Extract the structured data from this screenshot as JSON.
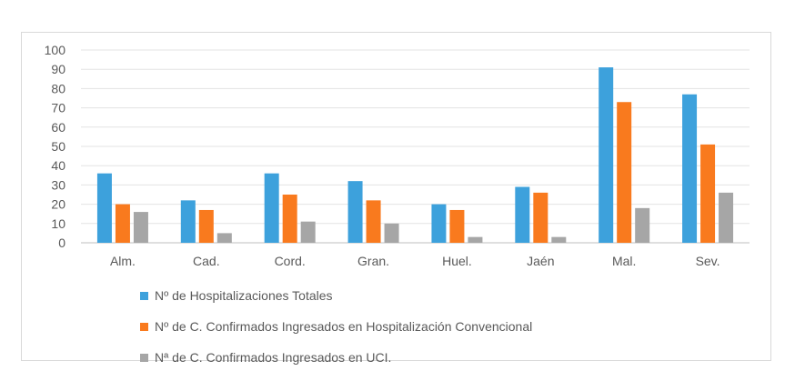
{
  "chart_data": {
    "type": "bar",
    "title": "",
    "xlabel": "",
    "ylabel": "",
    "ylim": [
      0,
      100
    ],
    "yticks": [
      0,
      10,
      20,
      30,
      40,
      50,
      60,
      70,
      80,
      90,
      100
    ],
    "grid": true,
    "legend_position": "bottom",
    "categories": [
      "Alm.",
      "Cad.",
      "Cord.",
      "Gran.",
      "Huel.",
      "Jaén",
      "Mal.",
      "Sev."
    ],
    "series": [
      {
        "name": "Nº de Hospitalizaciones Totales",
        "color": "#3da1dc",
        "values": [
          36,
          22,
          36,
          32,
          20,
          29,
          91,
          77
        ]
      },
      {
        "name": "Nº de C. Confirmados Ingresados en Hospitalización Convencional",
        "color": "#f97a1e",
        "values": [
          20,
          17,
          25,
          22,
          17,
          26,
          73,
          51
        ]
      },
      {
        "name": "Nª de C. Confirmados Ingresados en UCI.",
        "color": "#a6a6a6",
        "values": [
          16,
          5,
          11,
          10,
          3,
          3,
          18,
          26
        ]
      }
    ]
  }
}
